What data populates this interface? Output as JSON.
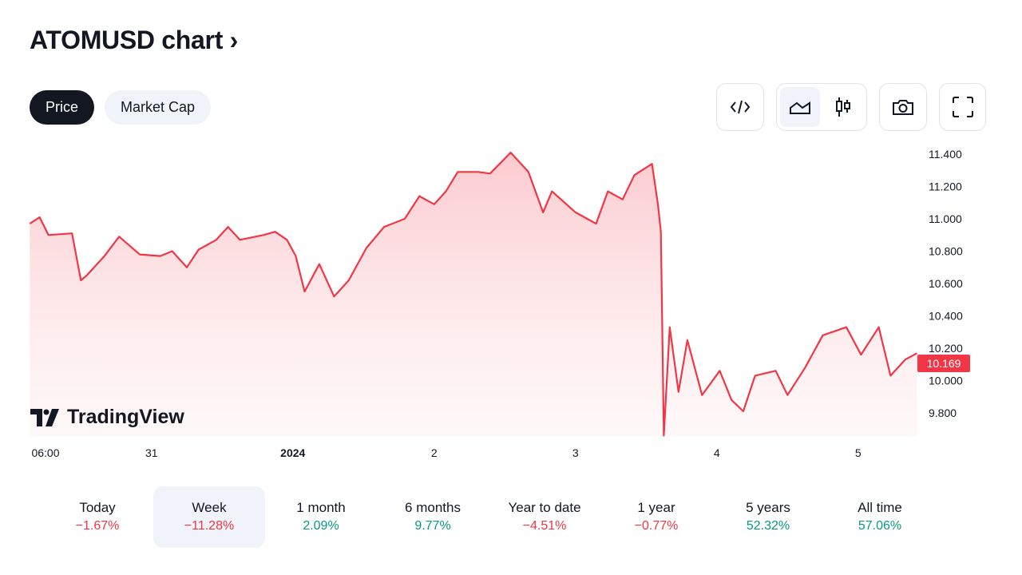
{
  "header": {
    "title": "ATOMUSD chart",
    "chevron": "›"
  },
  "tabs": [
    {
      "label": "Price",
      "active": true
    },
    {
      "label": "Market Cap",
      "active": false
    }
  ],
  "toolbar": {
    "icons": [
      "embed-code-icon",
      "area-chart-icon",
      "candles-icon",
      "camera-icon",
      "fullscreen-icon"
    ],
    "selected_style": "area"
  },
  "watermark": "TradingView",
  "colors": {
    "line": "#f23645",
    "fill_top": "#fbc8cc",
    "negative": "#f23645",
    "positive": "#089981"
  },
  "chart_data": {
    "type": "area",
    "title": "",
    "x_ticks": [
      {
        "t": "2023-12-30T06:00",
        "label": "06:00"
      },
      {
        "t": "2023-12-31T00:00",
        "label": "31"
      },
      {
        "t": "2024-01-01T00:00",
        "label": "2024"
      },
      {
        "t": "2024-01-02T00:00",
        "label": "2"
      },
      {
        "t": "2024-01-03T00:00",
        "label": "3"
      },
      {
        "t": "2024-01-04T00:00",
        "label": "4"
      },
      {
        "t": "2024-01-05T00:00",
        "label": "5"
      }
    ],
    "y_ticks": [
      "11.400",
      "11.200",
      "11.000",
      "10.800",
      "10.600",
      "10.400",
      "10.200",
      "10.000",
      "9.800"
    ],
    "ylim": [
      9.66,
      11.45
    ],
    "last_price": "10.169",
    "series": [
      {
        "points": [
          [
            "2023-12-30T03:20",
            10.97
          ],
          [
            "2023-12-30T05:00",
            11.01
          ],
          [
            "2023-12-30T06:30",
            10.9
          ],
          [
            "2023-12-30T10:30",
            10.91
          ],
          [
            "2023-12-30T12:00",
            10.62
          ],
          [
            "2023-12-30T13:00",
            10.65
          ],
          [
            "2023-12-30T16:00",
            10.77
          ],
          [
            "2023-12-30T18:30",
            10.89
          ],
          [
            "2023-12-30T22:00",
            10.78
          ],
          [
            "2023-12-31T01:30",
            10.77
          ],
          [
            "2023-12-31T03:30",
            10.8
          ],
          [
            "2023-12-31T06:00",
            10.7
          ],
          [
            "2023-12-31T08:00",
            10.81
          ],
          [
            "2023-12-31T11:00",
            10.87
          ],
          [
            "2023-12-31T13:00",
            10.95
          ],
          [
            "2023-12-31T15:00",
            10.87
          ],
          [
            "2023-12-31T19:00",
            10.9
          ],
          [
            "2023-12-31T21:00",
            10.92
          ],
          [
            "2023-12-31T23:00",
            10.87
          ],
          [
            "2024-01-01T00:30",
            10.77
          ],
          [
            "2024-01-01T02:00",
            10.55
          ],
          [
            "2024-01-01T04:30",
            10.72
          ],
          [
            "2024-01-01T07:00",
            10.52
          ],
          [
            "2024-01-01T09:30",
            10.62
          ],
          [
            "2024-01-01T12:30",
            10.82
          ],
          [
            "2024-01-01T15:30",
            10.95
          ],
          [
            "2024-01-01T19:00",
            11.0
          ],
          [
            "2024-01-01T21:30",
            11.14
          ],
          [
            "2024-01-02T00:00",
            11.09
          ],
          [
            "2024-01-02T02:00",
            11.17
          ],
          [
            "2024-01-02T04:00",
            11.29
          ],
          [
            "2024-01-02T07:30",
            11.29
          ],
          [
            "2024-01-02T09:30",
            11.28
          ],
          [
            "2024-01-02T13:00",
            11.41
          ],
          [
            "2024-01-02T16:00",
            11.29
          ],
          [
            "2024-01-02T18:30",
            11.04
          ],
          [
            "2024-01-02T20:00",
            11.17
          ],
          [
            "2024-01-03T00:00",
            11.04
          ],
          [
            "2024-01-03T03:30",
            10.97
          ],
          [
            "2024-01-03T05:30",
            11.17
          ],
          [
            "2024-01-03T08:00",
            11.12
          ],
          [
            "2024-01-03T10:00",
            11.27
          ],
          [
            "2024-01-03T13:00",
            11.34
          ],
          [
            "2024-01-03T14:00",
            11.09
          ],
          [
            "2024-01-03T14:30",
            10.92
          ],
          [
            "2024-01-03T15:00",
            9.66
          ],
          [
            "2024-01-03T16:00",
            10.33
          ],
          [
            "2024-01-03T17:30",
            9.93
          ],
          [
            "2024-01-03T19:00",
            10.25
          ],
          [
            "2024-01-03T21:30",
            9.91
          ],
          [
            "2024-01-04T00:30",
            10.06
          ],
          [
            "2024-01-04T02:30",
            9.88
          ],
          [
            "2024-01-04T04:30",
            9.81
          ],
          [
            "2024-01-04T06:30",
            10.03
          ],
          [
            "2024-01-04T10:00",
            10.06
          ],
          [
            "2024-01-04T12:00",
            9.91
          ],
          [
            "2024-01-04T15:00",
            10.08
          ],
          [
            "2024-01-04T18:00",
            10.28
          ],
          [
            "2024-01-04T22:00",
            10.33
          ],
          [
            "2024-01-05T00:30",
            10.16
          ],
          [
            "2024-01-05T03:30",
            10.33
          ],
          [
            "2024-01-05T05:30",
            10.03
          ],
          [
            "2024-01-05T08:00",
            10.13
          ],
          [
            "2024-01-05T10:00",
            10.169
          ]
        ]
      }
    ]
  },
  "periods": [
    {
      "label": "Today",
      "value": "−1.67%",
      "sign": "neg"
    },
    {
      "label": "Week",
      "value": "−11.28%",
      "sign": "neg",
      "selected": true
    },
    {
      "label": "1 month",
      "value": "2.09%",
      "sign": "pos"
    },
    {
      "label": "6 months",
      "value": "9.77%",
      "sign": "pos"
    },
    {
      "label": "Year to date",
      "value": "−4.51%",
      "sign": "neg"
    },
    {
      "label": "1 year",
      "value": "−0.77%",
      "sign": "neg"
    },
    {
      "label": "5 years",
      "value": "52.32%",
      "sign": "pos"
    },
    {
      "label": "All time",
      "value": "57.06%",
      "sign": "pos"
    }
  ]
}
